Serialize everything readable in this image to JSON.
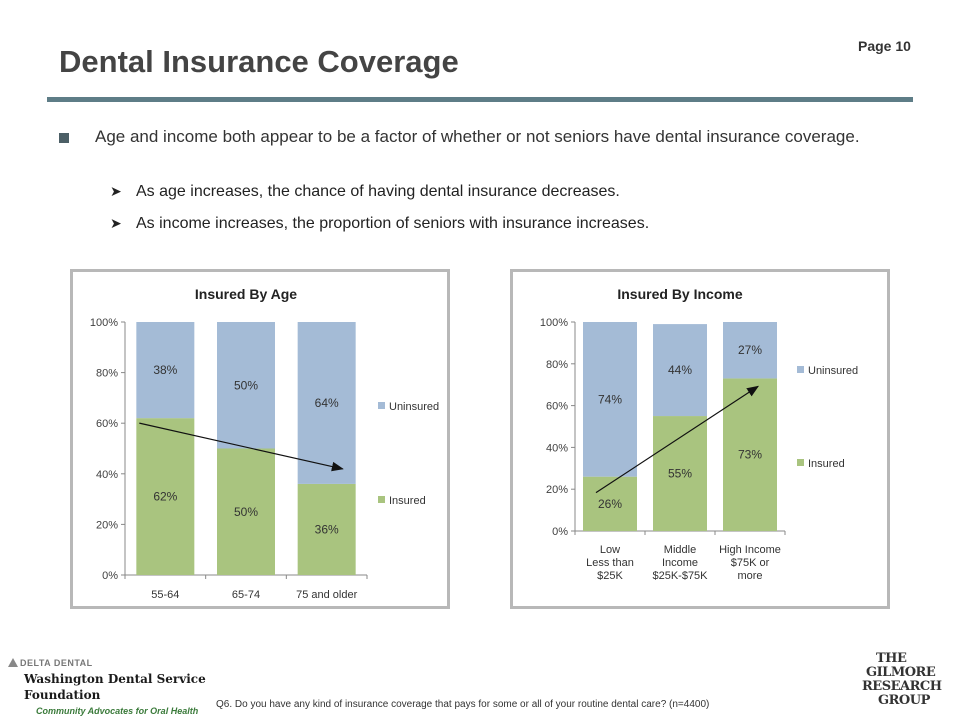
{
  "page": {
    "number_label": "Page 10",
    "title": "Dental Insurance Coverage"
  },
  "bullets": {
    "main": "Age and income both appear to be a factor of whether or not seniors have dental insurance coverage.",
    "sub": [
      "As age increases, the chance of having dental insurance decreases.",
      "As income increases, the proportion of seniors with insurance increases."
    ]
  },
  "colors": {
    "insured": "#a9c47f",
    "uninsured": "#a4bbd6",
    "title_rule": "#5e7d87",
    "frame_border": "#b8b8b8"
  },
  "chart_data": [
    {
      "type": "bar",
      "stacked": true,
      "title": "Insured By Age",
      "categories": [
        "55-64",
        "65-74",
        "75 and older"
      ],
      "series": [
        {
          "name": "Insured",
          "values": [
            62,
            50,
            36
          ]
        },
        {
          "name": "Uninsured",
          "values": [
            38,
            50,
            64
          ]
        }
      ],
      "ylim": [
        0,
        100
      ],
      "yticks": [
        "0%",
        "20%",
        "40%",
        "60%",
        "80%",
        "100%"
      ],
      "data_labels": {
        "Insured": [
          "62%",
          "50%",
          "36%"
        ],
        "Uninsured": [
          "38%",
          "50%",
          "64%"
        ]
      },
      "legend": [
        "Uninsured",
        "Insured"
      ],
      "legend_position": "right",
      "annotation": "arrow trending down",
      "grid": false
    },
    {
      "type": "bar",
      "stacked": true,
      "title": "Insured By Income",
      "categories": [
        "Low Less than $25K",
        "Middle Income $25K-$75K",
        "High Income $75K or more"
      ],
      "category_lines": [
        [
          "Low",
          "Less than",
          "$25K"
        ],
        [
          "Middle",
          "Income",
          "$25K-$75K"
        ],
        [
          "High Income",
          "$75K or",
          "more"
        ]
      ],
      "series": [
        {
          "name": "Insured",
          "values": [
            26,
            55,
            73
          ]
        },
        {
          "name": "Uninsured",
          "values": [
            74,
            44,
            27
          ]
        }
      ],
      "ylim": [
        0,
        100
      ],
      "yticks": [
        "0%",
        "20%",
        "40%",
        "60%",
        "80%",
        "100%"
      ],
      "data_labels": {
        "Insured": [
          "26%",
          "55%",
          "73%"
        ],
        "Uninsured": [
          "74%",
          "44%",
          "27%"
        ]
      },
      "legend": [
        "Uninsured",
        "Insured"
      ],
      "legend_position": "right",
      "annotation": "arrow trending up",
      "grid": false
    }
  ],
  "footer": {
    "delta_dental": "DELTA DENTAL",
    "org_line1": "Washington Dental Service",
    "org_line2": "Foundation",
    "tagline": "Community Advocates for Oral Health",
    "footnote": "Q6. Do you have any kind of insurance coverage that pays for some or all of your routine dental care? (n=4400)",
    "gilmore": [
      "THE",
      "GILMORE",
      "RESEARCH",
      "GROUP"
    ]
  }
}
